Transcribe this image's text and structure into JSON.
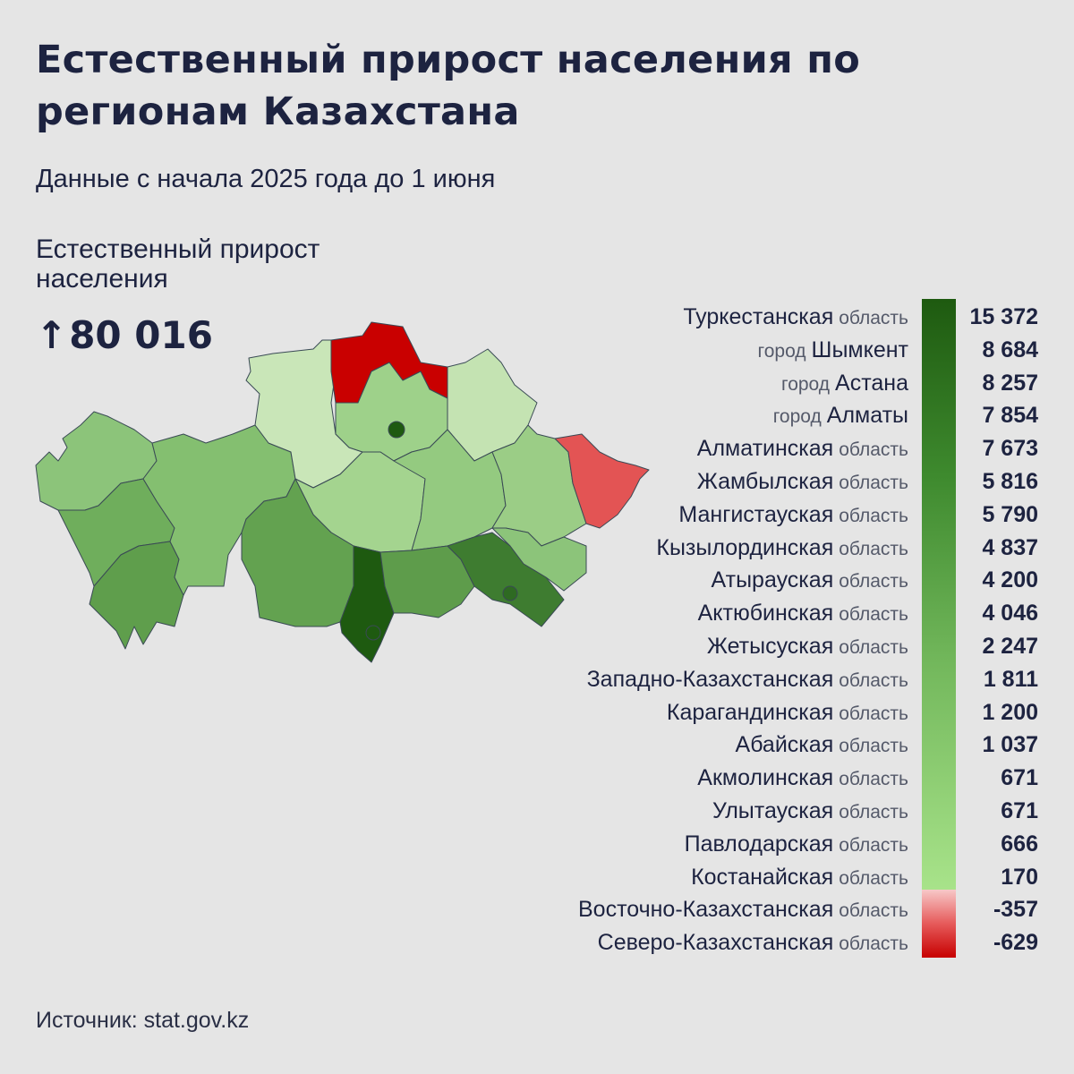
{
  "header": {
    "title": "Естественный прирост населения по регионам Казахстана",
    "subtitle": "Данные с начала 2025 года до 1 июня"
  },
  "summary": {
    "label": "Естественный прирост населения",
    "arrow": "↑",
    "value": "80 016"
  },
  "legend_rows": [
    {
      "prefix": "",
      "name": "Туркестанская",
      "suffix": "область",
      "value": "15 372",
      "num": 15372
    },
    {
      "prefix": "город",
      "name": "Шымкент",
      "suffix": "",
      "value": "8 684",
      "num": 8684
    },
    {
      "prefix": "город",
      "name": "Астана",
      "suffix": "",
      "value": "8 257",
      "num": 8257
    },
    {
      "prefix": "город",
      "name": "Алматы",
      "suffix": "",
      "value": "7 854",
      "num": 7854
    },
    {
      "prefix": "",
      "name": "Алматинская",
      "suffix": "область",
      "value": "7 673",
      "num": 7673
    },
    {
      "prefix": "",
      "name": "Жамбылская",
      "suffix": "область",
      "value": "5 816",
      "num": 5816
    },
    {
      "prefix": "",
      "name": "Мангистауская",
      "suffix": "область",
      "value": "5 790",
      "num": 5790
    },
    {
      "prefix": "",
      "name": "Кызылординская",
      "suffix": "область",
      "value": "4 837",
      "num": 4837
    },
    {
      "prefix": "",
      "name": "Атырауская",
      "suffix": "область",
      "value": "4 200",
      "num": 4200
    },
    {
      "prefix": "",
      "name": "Актюбинская",
      "suffix": "область",
      "value": "4 046",
      "num": 4046
    },
    {
      "prefix": "",
      "name": "Жетысуская",
      "suffix": "область",
      "value": "2 247",
      "num": 2247
    },
    {
      "prefix": "",
      "name": "Западно-Казахстанская",
      "suffix": "область",
      "value": "1 811",
      "num": 1811
    },
    {
      "prefix": "",
      "name": "Карагандинская",
      "suffix": "область",
      "value": "1 200",
      "num": 1200
    },
    {
      "prefix": "",
      "name": "Абайская",
      "suffix": "область",
      "value": "1 037",
      "num": 1037
    },
    {
      "prefix": "",
      "name": "Акмолинская",
      "suffix": "область",
      "value": "671",
      "num": 671
    },
    {
      "prefix": "",
      "name": "Улытауская",
      "suffix": "область",
      "value": "671",
      "num": 671
    },
    {
      "prefix": "",
      "name": "Павлодарская",
      "suffix": "область",
      "value": "666",
      "num": 666
    },
    {
      "prefix": "",
      "name": "Костанайская",
      "suffix": "область",
      "value": "170",
      "num": 170
    },
    {
      "prefix": "",
      "name": "Восточно-Казахстанская",
      "suffix": "область",
      "value": "-357",
      "num": -357
    },
    {
      "prefix": "",
      "name": "Северо-Казахстанская",
      "suffix": "область",
      "value": "-629",
      "num": -629
    }
  ],
  "colors": {
    "background": "#e5e5e5",
    "text": "#1d2340",
    "scale_high": "#1e5a10",
    "scale_low_positive": "#a8e38a",
    "scale_negative": "#c70000",
    "scale_slightly_negative": "#e05252",
    "border": "#3a4a55",
    "city_marker": "#1e5a10"
  },
  "map_regions": [
    {
      "name": "Западно-Казахстанская",
      "fill": "#8cc47a"
    },
    {
      "name": "Атырауская",
      "fill": "#6fae5c"
    },
    {
      "name": "Мангистауская",
      "fill": "#5f9e4c"
    },
    {
      "name": "Актюбинская",
      "fill": "#84bf70"
    },
    {
      "name": "Костанайская",
      "fill": "#c9e6b8"
    },
    {
      "name": "Северо-Казахстанская",
      "fill": "#c90000"
    },
    {
      "name": "Акмолинская",
      "fill": "#9ed18a"
    },
    {
      "name": "Павлодарская",
      "fill": "#c4e3b2"
    },
    {
      "name": "Улытауская",
      "fill": "#a4d48f"
    },
    {
      "name": "Карагандинская",
      "fill": "#94ca80"
    },
    {
      "name": "Абайская",
      "fill": "#9bcd86"
    },
    {
      "name": "Восточно-Казахстанская",
      "fill": "#e35454"
    },
    {
      "name": "Кызылординская",
      "fill": "#63a250"
    },
    {
      "name": "Туркестанская",
      "fill": "#1e5a10"
    },
    {
      "name": "Жамбылская",
      "fill": "#5e9c4b"
    },
    {
      "name": "Алматинская",
      "fill": "#3e7c30"
    },
    {
      "name": "Жетысуская",
      "fill": "#8cc47a"
    }
  ],
  "source": "Источник: stat.gov.kz"
}
